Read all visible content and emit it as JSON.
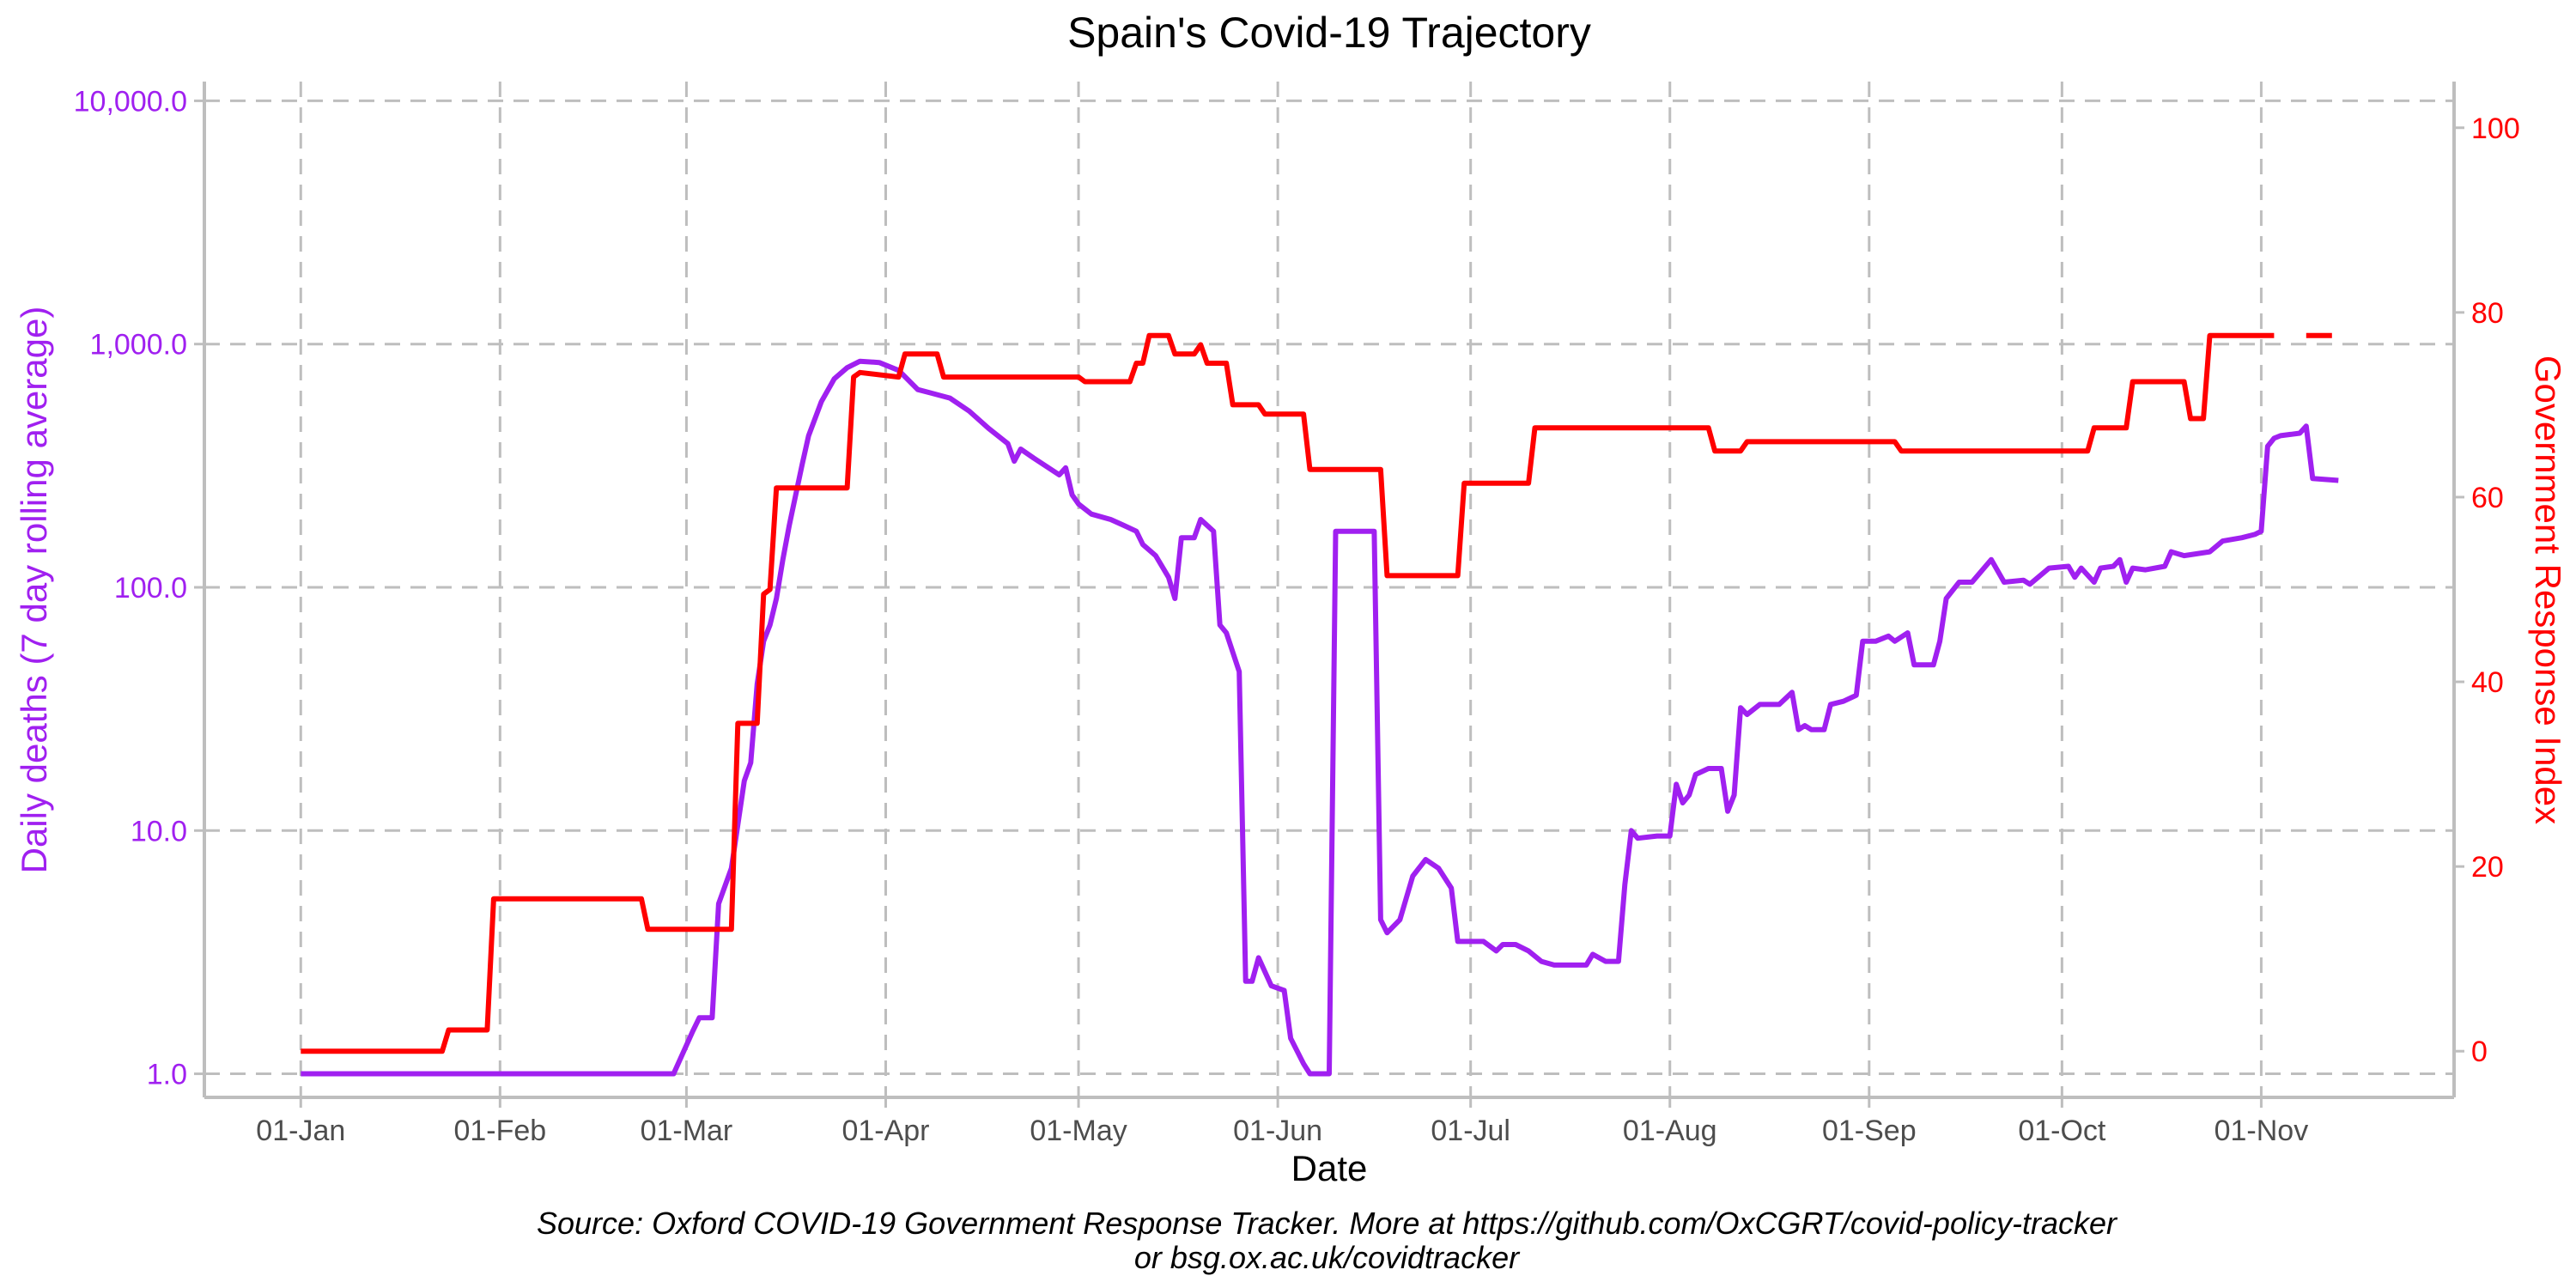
{
  "chart_data": {
    "type": "line",
    "title": "Spain's Covid-19 Trajectory",
    "xlabel": "Date",
    "ylabel_left": "Daily deaths (7 day rolling average)",
    "ylabel_right": "Government Response Index",
    "caption": [
      "Source: Oxford COVID-19 Government Response Tracker. More at https://github.com/OxCGRT/covid-policy-tracker",
      "or bsg.ox.ac.uk/covidtracker"
    ],
    "x_axis": {
      "type": "date",
      "range": [
        "2019-12-17",
        "2020-12-01"
      ],
      "ticks": [
        {
          "date": "2020-01-01",
          "label": "01-Jan"
        },
        {
          "date": "2020-02-01",
          "label": "01-Feb"
        },
        {
          "date": "2020-03-01",
          "label": "01-Mar"
        },
        {
          "date": "2020-04-01",
          "label": "01-Apr"
        },
        {
          "date": "2020-05-01",
          "label": "01-May"
        },
        {
          "date": "2020-06-01",
          "label": "01-Jun"
        },
        {
          "date": "2020-07-01",
          "label": "01-Jul"
        },
        {
          "date": "2020-08-01",
          "label": "01-Aug"
        },
        {
          "date": "2020-09-01",
          "label": "01-Sep"
        },
        {
          "date": "2020-10-01",
          "label": "01-Oct"
        },
        {
          "date": "2020-11-01",
          "label": "01-Nov"
        }
      ]
    },
    "y_left": {
      "scale": "log10",
      "range": [
        0.8,
        12000
      ],
      "ticks": [
        {
          "value": 1,
          "label": "1.0"
        },
        {
          "value": 10,
          "label": "10.0"
        },
        {
          "value": 100,
          "label": "100.0"
        },
        {
          "value": 1000,
          "label": "1,000.0"
        },
        {
          "value": 10000,
          "label": "10,000.0"
        }
      ]
    },
    "y_right": {
      "scale": "linear",
      "range": [
        -5,
        105
      ],
      "ticks": [
        {
          "value": 0,
          "label": "0"
        },
        {
          "value": 20,
          "label": "20"
        },
        {
          "value": 40,
          "label": "40"
        },
        {
          "value": 60,
          "label": "60"
        },
        {
          "value": 80,
          "label": "80"
        },
        {
          "value": 100,
          "label": "100"
        }
      ]
    },
    "grid": true,
    "series": [
      {
        "axis": "left",
        "color": "#A020F0",
        "points": [
          [
            "2020-01-01",
            1
          ],
          [
            "2020-02-28",
            1
          ],
          [
            "2020-03-02",
            1.5
          ],
          [
            "2020-03-03",
            1.7
          ],
          [
            "2020-03-05",
            1.7
          ],
          [
            "2020-03-06",
            5
          ],
          [
            "2020-03-08",
            7
          ],
          [
            "2020-03-10",
            16
          ],
          [
            "2020-03-11",
            19
          ],
          [
            "2020-03-12",
            40
          ],
          [
            "2020-03-13",
            60
          ],
          [
            "2020-03-14",
            70
          ],
          [
            "2020-03-15",
            90
          ],
          [
            "2020-03-16",
            130
          ],
          [
            "2020-03-17",
            180
          ],
          [
            "2020-03-18",
            240
          ],
          [
            "2020-03-19",
            320
          ],
          [
            "2020-03-20",
            420
          ],
          [
            "2020-03-22",
            580
          ],
          [
            "2020-03-24",
            720
          ],
          [
            "2020-03-26",
            800
          ],
          [
            "2020-03-28",
            850
          ],
          [
            "2020-03-31",
            840
          ],
          [
            "2020-04-03",
            780
          ],
          [
            "2020-04-06",
            650
          ],
          [
            "2020-04-08",
            630
          ],
          [
            "2020-04-11",
            600
          ],
          [
            "2020-04-14",
            530
          ],
          [
            "2020-04-17",
            450
          ],
          [
            "2020-04-20",
            390
          ],
          [
            "2020-04-21",
            330
          ],
          [
            "2020-04-22",
            370
          ],
          [
            "2020-04-24",
            340
          ],
          [
            "2020-04-28",
            290
          ],
          [
            "2020-04-29",
            310
          ],
          [
            "2020-04-30",
            240
          ],
          [
            "2020-05-01",
            220
          ],
          [
            "2020-05-03",
            200
          ],
          [
            "2020-05-06",
            190
          ],
          [
            "2020-05-08",
            180
          ],
          [
            "2020-05-10",
            170
          ],
          [
            "2020-05-11",
            150
          ],
          [
            "2020-05-13",
            135
          ],
          [
            "2020-05-15",
            110
          ],
          [
            "2020-05-16",
            90
          ],
          [
            "2020-05-17",
            160
          ],
          [
            "2020-05-19",
            160
          ],
          [
            "2020-05-20",
            190
          ],
          [
            "2020-05-22",
            170
          ],
          [
            "2020-05-23",
            70
          ],
          [
            "2020-05-24",
            65
          ],
          [
            "2020-05-26",
            45
          ],
          [
            "2020-05-27",
            2.4
          ],
          [
            "2020-05-28",
            2.4
          ],
          [
            "2020-05-29",
            3
          ],
          [
            "2020-05-31",
            2.3
          ],
          [
            "2020-06-02",
            2.2
          ],
          [
            "2020-06-03",
            1.4
          ],
          [
            "2020-06-05",
            1.1
          ],
          [
            "2020-06-06",
            1
          ],
          [
            "2020-06-09",
            1
          ],
          [
            "2020-06-10",
            170
          ],
          [
            "2020-06-16",
            170
          ],
          [
            "2020-06-17",
            4.3
          ],
          [
            "2020-06-18",
            3.8
          ],
          [
            "2020-06-20",
            4.3
          ],
          [
            "2020-06-22",
            6.5
          ],
          [
            "2020-06-24",
            7.6
          ],
          [
            "2020-06-26",
            7
          ],
          [
            "2020-06-28",
            5.8
          ],
          [
            "2020-06-29",
            3.5
          ],
          [
            "2020-07-03",
            3.5
          ],
          [
            "2020-07-05",
            3.2
          ],
          [
            "2020-07-06",
            3.4
          ],
          [
            "2020-07-08",
            3.4
          ],
          [
            "2020-07-10",
            3.2
          ],
          [
            "2020-07-12",
            2.9
          ],
          [
            "2020-07-14",
            2.8
          ],
          [
            "2020-07-19",
            2.8
          ],
          [
            "2020-07-20",
            3.1
          ],
          [
            "2020-07-22",
            2.9
          ],
          [
            "2020-07-24",
            2.9
          ],
          [
            "2020-07-25",
            6
          ],
          [
            "2020-07-26",
            10
          ],
          [
            "2020-07-27",
            9.3
          ],
          [
            "2020-07-30",
            9.5
          ],
          [
            "2020-08-01",
            9.5
          ],
          [
            "2020-08-02",
            15.5
          ],
          [
            "2020-08-03",
            13
          ],
          [
            "2020-08-04",
            14
          ],
          [
            "2020-08-05",
            17
          ],
          [
            "2020-08-07",
            18
          ],
          [
            "2020-08-09",
            18
          ],
          [
            "2020-08-10",
            12
          ],
          [
            "2020-08-11",
            14
          ],
          [
            "2020-08-12",
            32
          ],
          [
            "2020-08-13",
            30
          ],
          [
            "2020-08-15",
            33
          ],
          [
            "2020-08-18",
            33
          ],
          [
            "2020-08-20",
            37
          ],
          [
            "2020-08-21",
            26
          ],
          [
            "2020-08-22",
            27
          ],
          [
            "2020-08-23",
            26
          ],
          [
            "2020-08-25",
            26
          ],
          [
            "2020-08-26",
            33
          ],
          [
            "2020-08-28",
            34
          ],
          [
            "2020-08-30",
            36
          ],
          [
            "2020-08-31",
            60
          ],
          [
            "2020-09-02",
            60
          ],
          [
            "2020-09-04",
            63
          ],
          [
            "2020-09-05",
            60
          ],
          [
            "2020-09-07",
            65
          ],
          [
            "2020-09-08",
            48
          ],
          [
            "2020-09-11",
            48
          ],
          [
            "2020-09-12",
            60
          ],
          [
            "2020-09-13",
            90
          ],
          [
            "2020-09-15",
            105
          ],
          [
            "2020-09-17",
            105
          ],
          [
            "2020-09-20",
            130
          ],
          [
            "2020-09-22",
            105
          ],
          [
            "2020-09-25",
            107
          ],
          [
            "2020-09-26",
            103
          ],
          [
            "2020-09-29",
            120
          ],
          [
            "2020-10-02",
            122
          ],
          [
            "2020-10-03",
            110
          ],
          [
            "2020-10-04",
            120
          ],
          [
            "2020-10-06",
            105
          ],
          [
            "2020-10-07",
            120
          ],
          [
            "2020-10-09",
            122
          ],
          [
            "2020-10-10",
            130
          ],
          [
            "2020-10-11",
            105
          ],
          [
            "2020-10-12",
            120
          ],
          [
            "2020-10-14",
            118
          ],
          [
            "2020-10-17",
            122
          ],
          [
            "2020-10-18",
            140
          ],
          [
            "2020-10-20",
            135
          ],
          [
            "2020-10-24",
            140
          ],
          [
            "2020-10-26",
            155
          ],
          [
            "2020-10-29",
            160
          ],
          [
            "2020-10-31",
            165
          ],
          [
            "2020-11-01",
            170
          ],
          [
            "2020-11-02",
            380
          ],
          [
            "2020-11-03",
            410
          ],
          [
            "2020-11-04",
            420
          ],
          [
            "2020-11-07",
            430
          ],
          [
            "2020-11-08",
            460
          ],
          [
            "2020-11-09",
            280
          ],
          [
            "2020-11-13",
            275
          ]
        ]
      },
      {
        "axis": "right",
        "color": "#FF0000",
        "points": [
          [
            "2020-01-01",
            0
          ],
          [
            "2020-01-23",
            0
          ],
          [
            "2020-01-24",
            2.3
          ],
          [
            "2020-01-30",
            2.3
          ],
          [
            "2020-01-31",
            16.5
          ],
          [
            "2020-02-23",
            16.5
          ],
          [
            "2020-02-24",
            13.2
          ],
          [
            "2020-03-08",
            13.2
          ],
          [
            "2020-03-09",
            35.5
          ],
          [
            "2020-03-12",
            35.5
          ],
          [
            "2020-03-13",
            49.5
          ],
          [
            "2020-03-14",
            50
          ],
          [
            "2020-03-15",
            61
          ],
          [
            "2020-03-26",
            61
          ],
          [
            "2020-03-27",
            73
          ],
          [
            "2020-03-28",
            73.5
          ],
          [
            "2020-04-03",
            73
          ],
          [
            "2020-04-04",
            75.5
          ],
          [
            "2020-04-09",
            75.5
          ],
          [
            "2020-04-10",
            73
          ],
          [
            "2020-05-01",
            73
          ],
          [
            "2020-05-02",
            72.5
          ],
          [
            "2020-05-09",
            72.5
          ],
          [
            "2020-05-10",
            74.5
          ],
          [
            "2020-05-11",
            74.5
          ],
          [
            "2020-05-12",
            77.5
          ],
          [
            "2020-05-15",
            77.5
          ],
          [
            "2020-05-16",
            75.5
          ],
          [
            "2020-05-19",
            75.5
          ],
          [
            "2020-05-20",
            76.5
          ],
          [
            "2020-05-21",
            74.5
          ],
          [
            "2020-05-24",
            74.5
          ],
          [
            "2020-05-25",
            70
          ],
          [
            "2020-05-29",
            70
          ],
          [
            "2020-05-30",
            69
          ],
          [
            "2020-06-05",
            69
          ],
          [
            "2020-06-06",
            63
          ],
          [
            "2020-06-17",
            63
          ],
          [
            "2020-06-18",
            51.5
          ],
          [
            "2020-06-29",
            51.5
          ],
          [
            "2020-06-30",
            61.5
          ],
          [
            "2020-07-10",
            61.5
          ],
          [
            "2020-07-11",
            67.5
          ],
          [
            "2020-08-07",
            67.5
          ],
          [
            "2020-08-08",
            65
          ],
          [
            "2020-08-12",
            65
          ],
          [
            "2020-08-13",
            66
          ],
          [
            "2020-09-05",
            66
          ],
          [
            "2020-09-06",
            65
          ],
          [
            "2020-10-05",
            65
          ],
          [
            "2020-10-06",
            67.5
          ],
          [
            "2020-10-11",
            67.5
          ],
          [
            "2020-10-12",
            72.5
          ],
          [
            "2020-10-20",
            72.5
          ],
          [
            "2020-10-21",
            68.5
          ],
          [
            "2020-10-23",
            68.5
          ],
          [
            "2020-10-24",
            77.5
          ],
          [
            "2020-11-03",
            77.5
          ],
          null,
          [
            "2020-11-08",
            77.5
          ],
          [
            "2020-11-12",
            77.5
          ]
        ]
      }
    ]
  },
  "colors": {
    "deaths": "#A020F0",
    "response_index": "#FF0000",
    "grid": "#BEBEBE",
    "axis": "#BEBEBE",
    "text": "#000000",
    "tick_text": "#4D4D4D"
  }
}
